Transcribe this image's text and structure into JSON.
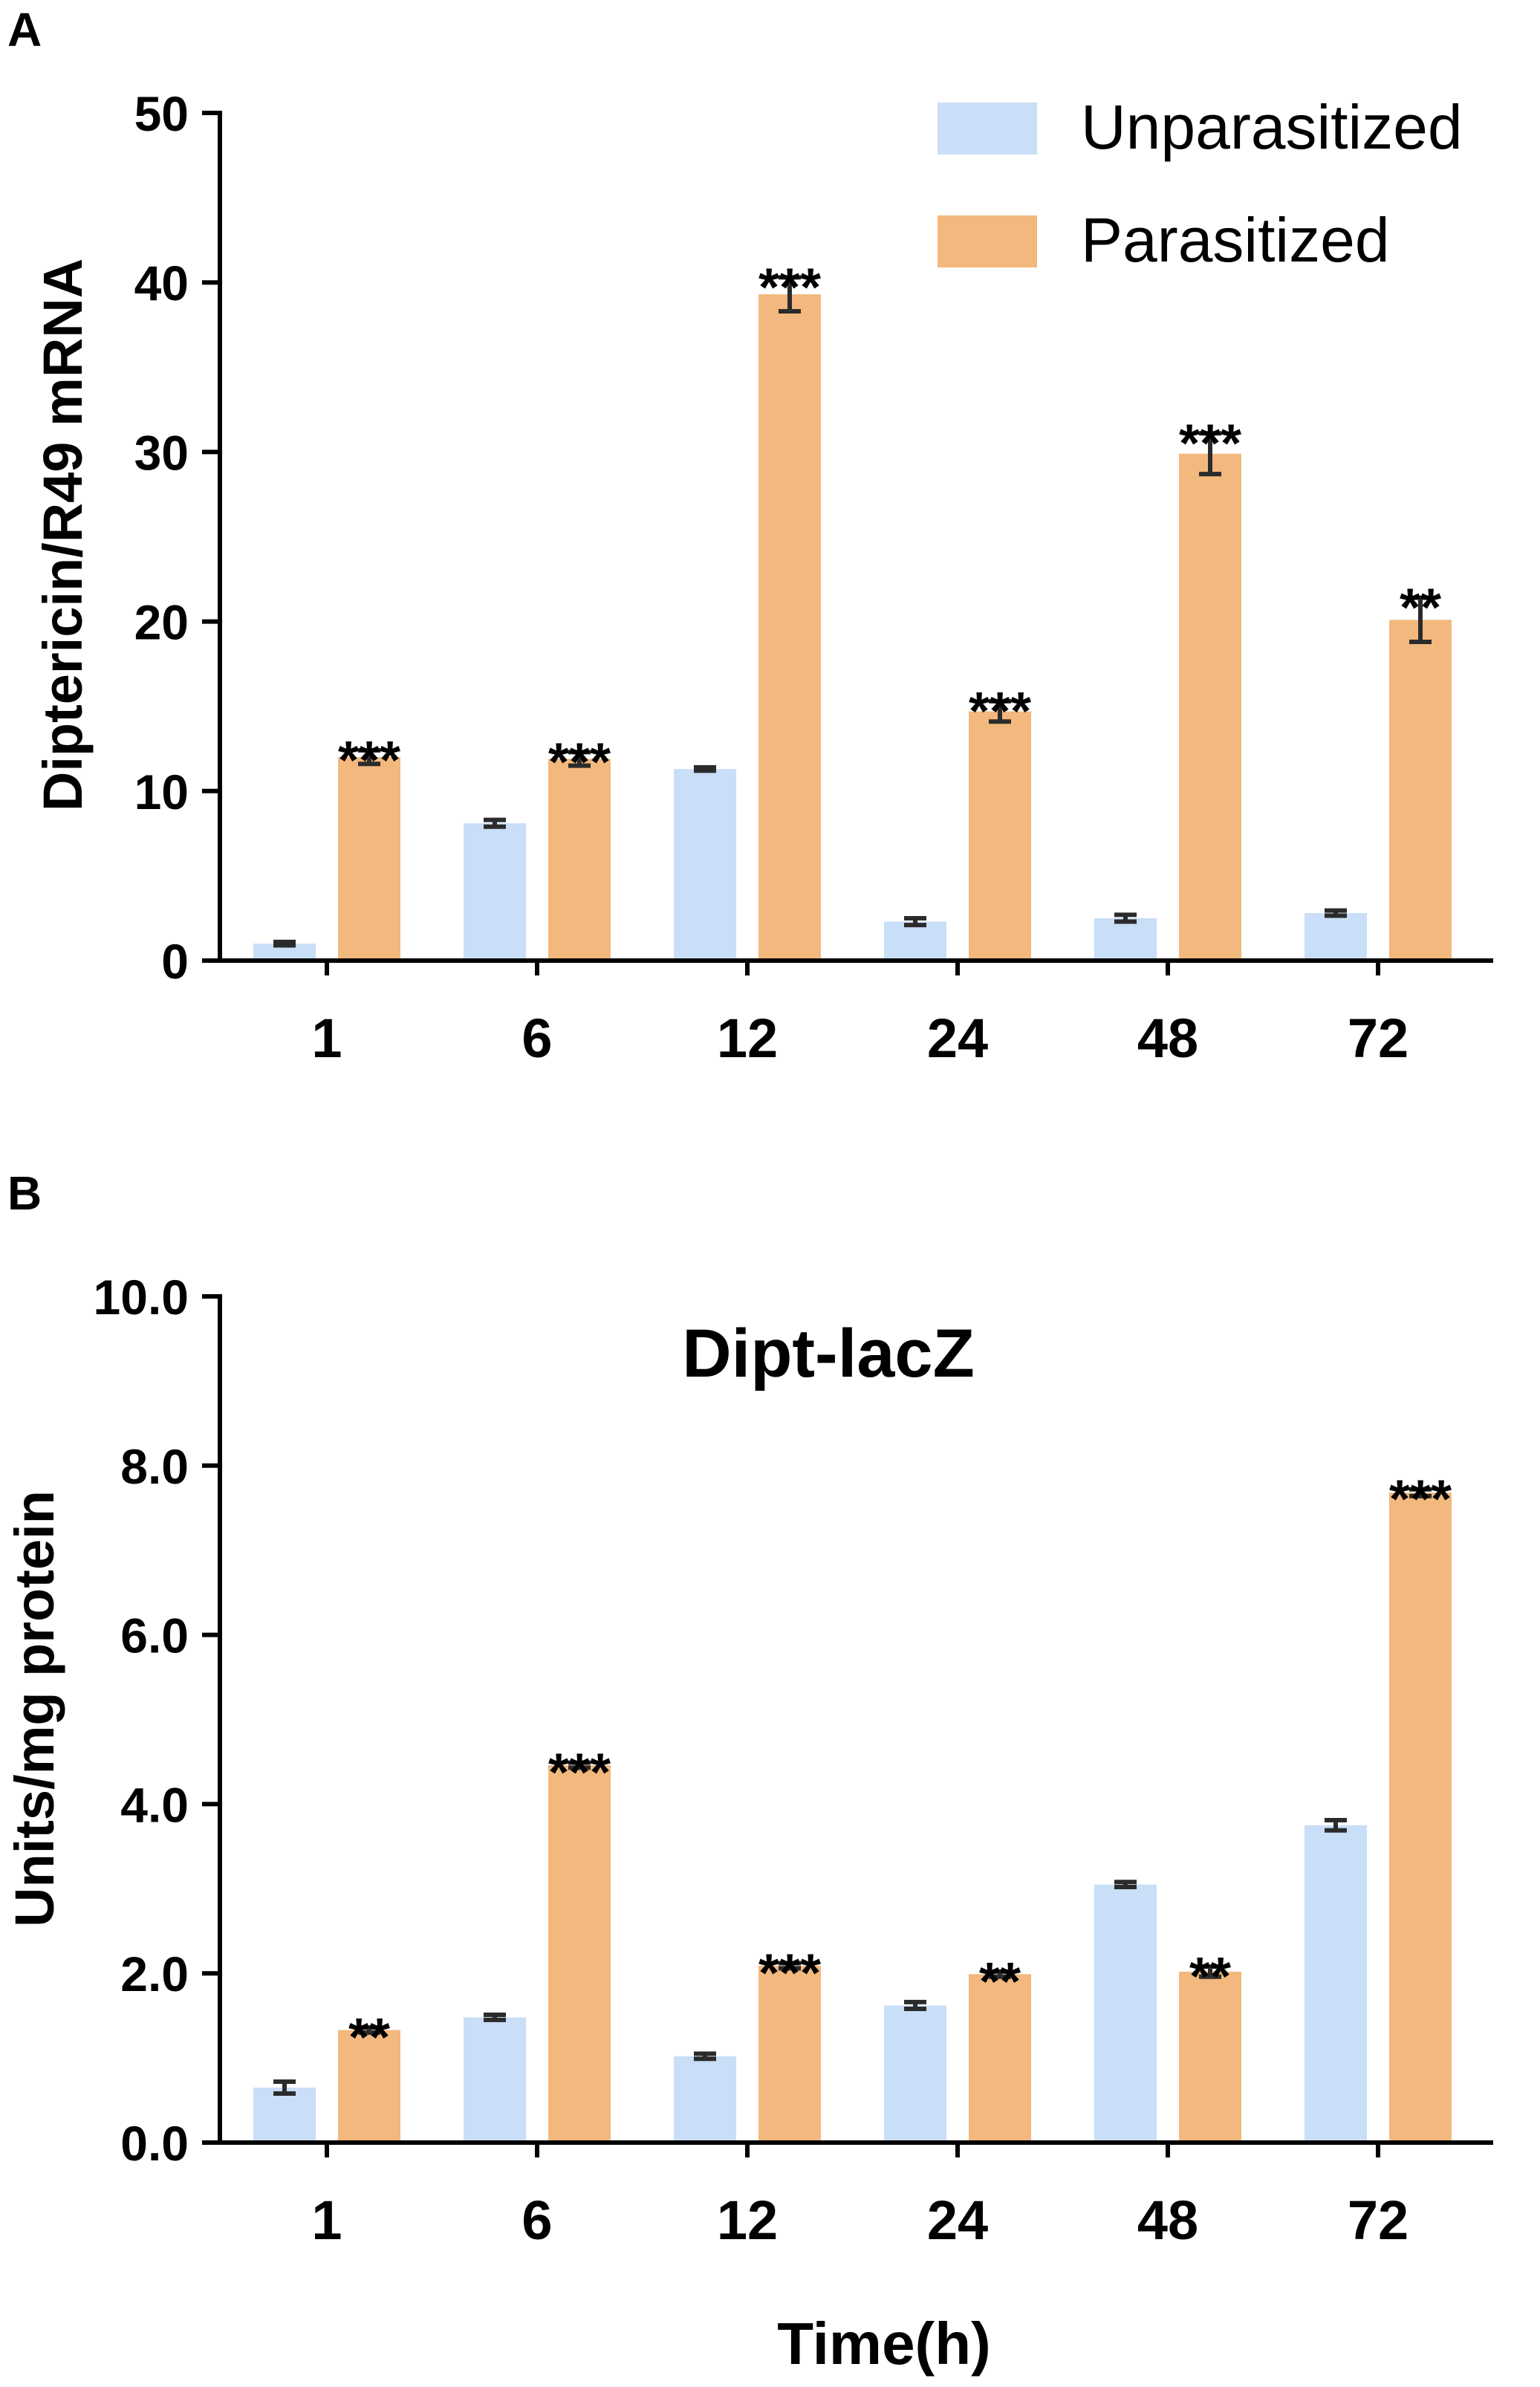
{
  "chart_data": [
    {
      "panel": "A",
      "type": "bar",
      "title": "",
      "xlabel": "",
      "ylabel": "Diptericin/R49 mRNA",
      "categories": [
        "1",
        "6",
        "12",
        "24",
        "48",
        "72"
      ],
      "ylim": [
        0,
        50
      ],
      "yticks": [
        "0",
        "10",
        "20",
        "30",
        "40",
        "50"
      ],
      "ytick_values": [
        0,
        10,
        20,
        30,
        40,
        50
      ],
      "legend": {
        "position": "top-right",
        "entries": [
          "Unparasitized",
          "Parasitized"
        ]
      },
      "series": [
        {
          "name": "Unparasitized",
          "color": "#c9def7",
          "values": [
            1.0,
            8.1,
            11.3,
            2.3,
            2.5,
            2.8
          ],
          "errors": [
            0.1,
            0.2,
            0.1,
            0.2,
            0.2,
            0.15
          ]
        },
        {
          "name": "Parasitized",
          "color": "#f2b87e",
          "values": [
            12.0,
            11.9,
            39.3,
            14.7,
            29.9,
            20.1
          ],
          "errors": [
            0.4,
            0.4,
            1.0,
            0.6,
            1.2,
            1.3
          ]
        }
      ],
      "annotations": [
        "***",
        "***",
        "***",
        "***",
        "***",
        "**"
      ]
    },
    {
      "panel": "B",
      "type": "bar",
      "title": "Dipt-lacZ",
      "xlabel": "Time(h)",
      "ylabel": "Units/mg protein",
      "categories": [
        "1",
        "6",
        "12",
        "24",
        "48",
        "72"
      ],
      "ylim": [
        0,
        10
      ],
      "yticks": [
        "0.0",
        "2.0",
        "4.0",
        "6.0",
        "8.0",
        "10.0"
      ],
      "ytick_values": [
        0,
        2,
        4,
        6,
        8,
        10
      ],
      "series": [
        {
          "name": "Unparasitized",
          "color": "#c9def7",
          "values": [
            0.65,
            1.48,
            1.02,
            1.62,
            3.05,
            3.75
          ],
          "errors": [
            0.07,
            0.03,
            0.03,
            0.04,
            0.03,
            0.06
          ]
        },
        {
          "name": "Parasitized",
          "color": "#f2b87e",
          "values": [
            1.33,
            4.46,
            2.09,
            1.99,
            2.02,
            7.68
          ],
          "errors": [
            0.03,
            0.03,
            0.03,
            0.03,
            0.06,
            0.04
          ]
        }
      ],
      "annotations": [
        "**",
        "***",
        "***",
        "**",
        "**",
        "***"
      ]
    }
  ]
}
